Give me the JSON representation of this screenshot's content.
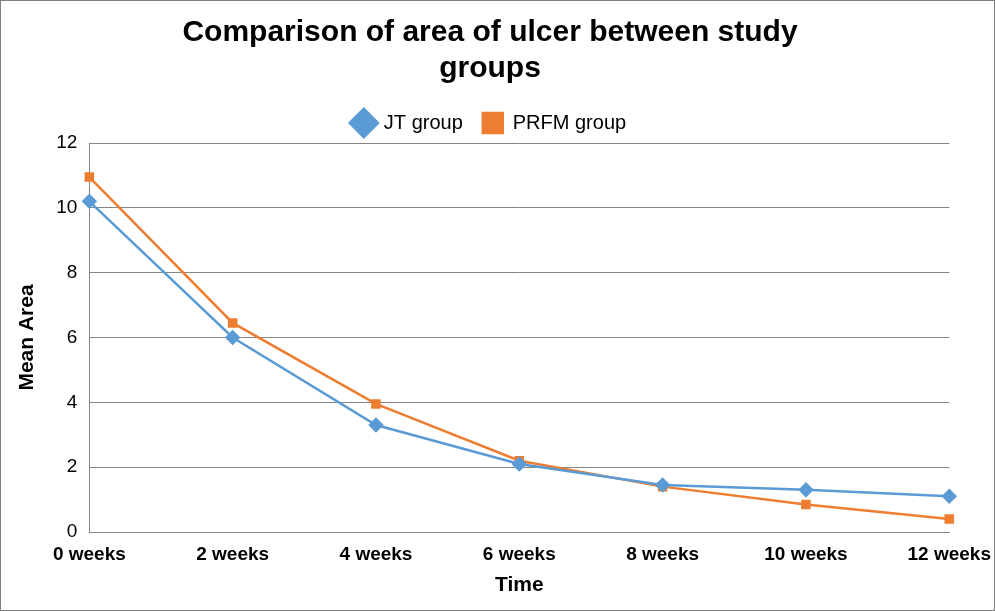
{
  "chart_data": {
    "type": "line",
    "title": "Comparison of area of ulcer between study groups",
    "x_label": "Time",
    "y_label": "Mean Area",
    "categories": [
      "0 weeks",
      "2 weeks",
      "4 weeks",
      "6 weeks",
      "8 weeks",
      "10 weeks",
      "12 weeks"
    ],
    "series": [
      {
        "name": "JT group",
        "color": "#5b9bd5",
        "marker": "diamond",
        "line_style": "solid",
        "values": [
          10.2,
          6.0,
          3.3,
          2.1,
          1.45,
          1.3,
          1.1
        ]
      },
      {
        "name": "PRFM group",
        "color": "#ed7d31",
        "marker": "square",
        "line_style": "solid",
        "values": [
          10.95,
          6.45,
          3.95,
          2.2,
          1.4,
          0.85,
          0.4
        ]
      }
    ],
    "ylim": [
      0,
      12
    ],
    "yticks": [
      0,
      2,
      4,
      6,
      8,
      10,
      12
    ],
    "grid": true,
    "legend": "top"
  }
}
